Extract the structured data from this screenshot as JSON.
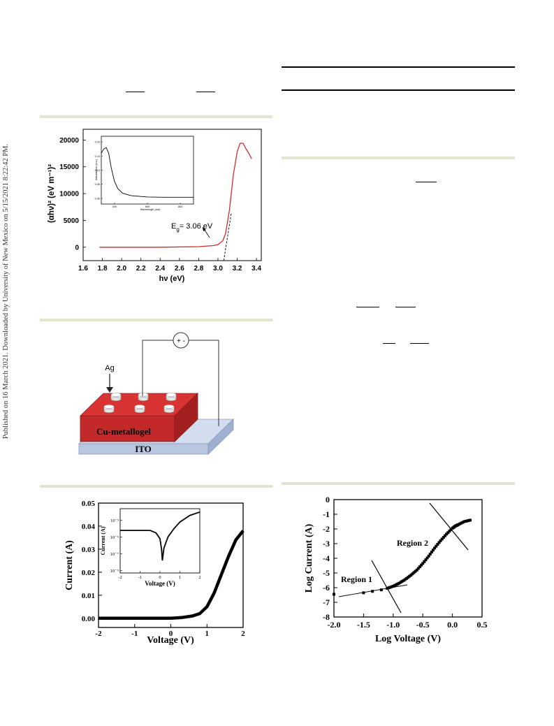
{
  "sidebar": {
    "published_line": "Published on 16 March 2021. Downloaded by University of New Mexico on 5/15/2021 8:22:42 PM."
  },
  "colors": {
    "figure_rule": "#e2e3d0",
    "tauc_line": "#d42a2a",
    "metallogel_red": "#c22a2a",
    "ito_blue": "#b9c6e0"
  },
  "chart_data": [
    {
      "type": "line",
      "ylabel": "(αhν)² (eV m⁻¹)²",
      "xlabel": "hν (eV)",
      "xlim": [
        1.6,
        3.45
      ],
      "ylim": [
        -2500,
        22000
      ],
      "xticks": [
        "1.6",
        "1.8",
        "2.0",
        "2.2",
        "2.4",
        "2.6",
        "2.8",
        "3.0",
        "3.2",
        "3.4"
      ],
      "yticks": [
        "0",
        "5000",
        "10000",
        "15000",
        "20000"
      ],
      "annotation": "Eg = 3.06 eV",
      "annotation_parts": {
        "main": "E",
        "sub": "g",
        "rest": "= 3.06 eV"
      },
      "x": [
        1.77,
        2.0,
        2.4,
        2.8,
        2.95,
        3.0,
        3.05,
        3.08,
        3.12,
        3.16,
        3.2,
        3.23,
        3.26,
        3.29,
        3.32,
        3.35
      ],
      "y": [
        0,
        0,
        0,
        100,
        300,
        500,
        1200,
        2600,
        7000,
        13500,
        17800,
        19400,
        19400,
        18400,
        17500,
        16500
      ],
      "inset": {
        "ylabel": "Absorbance (a.u.)",
        "xlabel": "Wavelength (nm)",
        "xticks": [
          "400",
          "600",
          "800"
        ],
        "yticks": [
          "0.00",
          "0.05",
          "0.10",
          "0.15",
          "0.20"
        ],
        "xlim": [
          320,
          880
        ],
        "ylim": [
          -0.02,
          0.22
        ],
        "x": [
          320,
          335,
          350,
          365,
          380,
          400,
          420,
          450,
          500,
          600,
          700,
          880
        ],
        "y": [
          0.16,
          0.175,
          0.18,
          0.16,
          0.11,
          0.06,
          0.035,
          0.018,
          0.01,
          0.005,
          0.004,
          0.004
        ]
      }
    },
    {
      "type": "line",
      "ylabel": "Current (A)",
      "xlabel": "Voltage (V)",
      "xlim": [
        -2,
        2
      ],
      "ylim": [
        -0.004,
        0.05
      ],
      "xticks": [
        "-2",
        "-1",
        "0",
        "1",
        "2"
      ],
      "yticks": [
        "0.00",
        "0.01",
        "0.02",
        "0.03",
        "0.04",
        "0.05"
      ],
      "x": [
        -2,
        -1,
        0,
        0.3,
        0.6,
        0.8,
        1.0,
        1.2,
        1.4,
        1.6,
        1.8,
        2.0
      ],
      "y": [
        0,
        0,
        0,
        0.0003,
        0.001,
        0.002,
        0.005,
        0.011,
        0.019,
        0.027,
        0.034,
        0.038
      ],
      "inset": {
        "ylabel": "Current (A)",
        "xlabel": "Voltage (V)",
        "xticks": [
          "-2",
          "-1",
          "0",
          "1",
          "2"
        ],
        "yticks": [
          "10⁻⁹",
          "10⁻⁷",
          "10⁻⁵",
          "10⁻³"
        ],
        "ylog": [
          -9.3,
          -1.6
        ],
        "x": [
          -2,
          -1,
          -0.5,
          -0.2,
          0.0,
          0.08,
          0.12,
          0.2,
          0.4,
          0.7,
          1.0,
          1.5,
          2.0
        ],
        "logy": [
          -4.2,
          -4.2,
          -4.2,
          -4.5,
          -5.2,
          -6.5,
          -7.8,
          -6.3,
          -5.0,
          -4.0,
          -3.2,
          -2.4,
          -2.0
        ]
      }
    },
    {
      "type": "scatter",
      "ylabel": "Log Current (A)",
      "xlabel": "Log Voltage (V)",
      "xlim": [
        -2.0,
        0.5
      ],
      "ylim": [
        -8,
        0
      ],
      "xticks": [
        "-2.0",
        "-1.5",
        "-1.0",
        "-0.5",
        "0.0",
        "0.5"
      ],
      "yticks": [
        "0",
        "-1",
        "-2",
        "-3",
        "-4",
        "-5",
        "-6",
        "-7",
        "-8"
      ],
      "regions": [
        "Region 1",
        "Region 2"
      ],
      "x": [
        -2.0,
        -1.5,
        -1.35,
        -1.2,
        -1.1,
        -1.0,
        -0.9,
        -0.8,
        -0.7,
        -0.6,
        -0.5,
        -0.4,
        -0.3,
        -0.2,
        -0.1,
        0.0,
        0.05,
        0.1,
        0.2,
        0.3
      ],
      "y": [
        -6.45,
        -6.35,
        -6.25,
        -6.15,
        -6.05,
        -5.9,
        -5.7,
        -5.45,
        -5.15,
        -4.8,
        -4.35,
        -3.85,
        -3.3,
        -2.8,
        -2.35,
        -1.95,
        -1.8,
        -1.7,
        -1.5,
        -1.4
      ]
    }
  ],
  "schematic": {
    "ag_label": "Ag",
    "gel_label": "Cu-metallogel",
    "ito_label": "ITO",
    "source_symbol": "+ -"
  }
}
